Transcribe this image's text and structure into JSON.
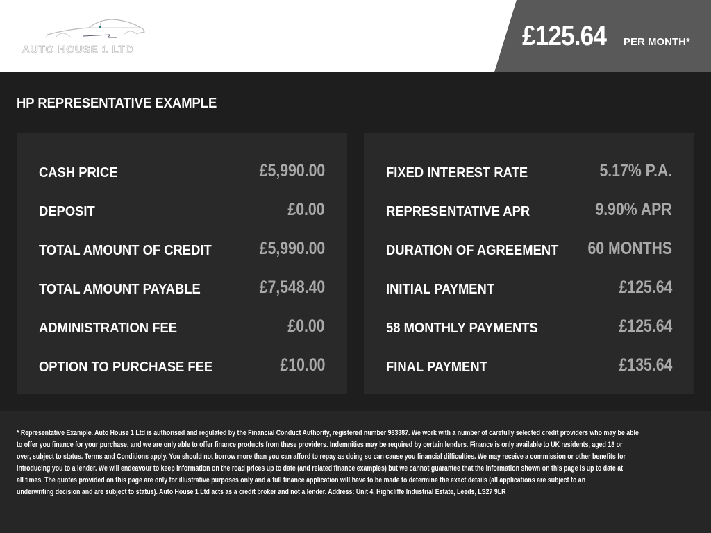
{
  "header": {
    "logo_text": "AUTO HOUSE 1 LTD",
    "price": "£125.64",
    "per_month": "PER MONTH*"
  },
  "title": "HP REPRESENTATIVE EXAMPLE",
  "left_rows": [
    {
      "label": "CASH PRICE",
      "value": "£5,990.00"
    },
    {
      "label": "DEPOSIT",
      "value": "£0.00"
    },
    {
      "label": "TOTAL AMOUNT OF CREDIT",
      "value": "£5,990.00"
    },
    {
      "label": "TOTAL AMOUNT PAYABLE",
      "value": "£7,548.40"
    },
    {
      "label": "ADMINISTRATION FEE",
      "value": "£0.00"
    },
    {
      "label": "OPTION TO PURCHASE FEE",
      "value": "£10.00"
    }
  ],
  "right_rows": [
    {
      "label": "FIXED INTEREST RATE",
      "value": "5.17% P.A."
    },
    {
      "label": "REPRESENTATIVE APR",
      "value": "9.90% APR"
    },
    {
      "label": "DURATION OF AGREEMENT",
      "value": "60 MONTHS"
    },
    {
      "label": "INITIAL PAYMENT",
      "value": "£125.64"
    },
    {
      "label": "58 MONTHLY PAYMENTS",
      "value": "£125.64"
    },
    {
      "label": "FINAL PAYMENT",
      "value": "£135.64"
    }
  ],
  "disclaimer_lines": [
    "* Representative Example. Auto House 1 Ltd is authorised and regulated by the Financial Conduct Authority, registered number 983387. We work with a number of carefully selected credit providers who may be able",
    "to offer you finance for your purchase, and we are only able to offer finance products from these providers. Indemnities may be required by certain lenders. Finance is only available to UK residents, aged 18 or",
    "over, subject to status. Terms and Conditions apply. You should not borrow more than you can afford to repay as doing so can cause you financial difficulties. We may receive a commission or other benefits for",
    "introducing you to a lender. We will endeavour to keep information on the road prices up to date (and related finance examples) but we cannot guarantee that the information shown on this page is up to date at",
    "all times. The quotes provided on this page are only for illustrative purposes only and a full finance application will have to be made to determine the exact details (all applications are subject to an",
    "underwriting decision and are subject to status). Auto House 1 Ltd acts as a credit broker and not a lender. Address: Unit 4, Highcliffe Industrial Estate, Leeds, LS27 9LR"
  ]
}
